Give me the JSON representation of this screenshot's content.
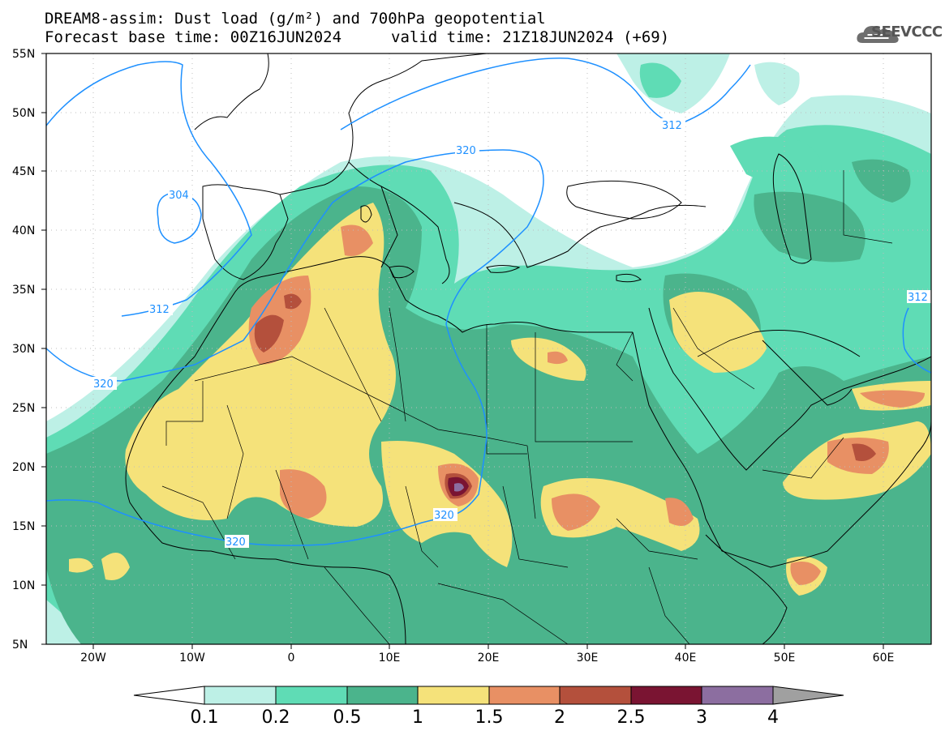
{
  "header": {
    "title": "DREAM8-assim: Dust load (g/m²) and 700hPa geopotential",
    "base_time": "Forecast base time: 00Z16JUN2024",
    "valid_time": "valid time: 21Z18JUN2024 (+69)"
  },
  "logo": {
    "text": "SEEVCCC",
    "icon": "cloud-logo-icon"
  },
  "map": {
    "lat_labels": [
      "5N",
      "10N",
      "15N",
      "20N",
      "25N",
      "30N",
      "35N",
      "40N",
      "45N",
      "50N",
      "55N"
    ],
    "lon_labels": [
      "20W",
      "10W",
      "0",
      "10E",
      "20E",
      "30E",
      "40E",
      "50E",
      "60E"
    ],
    "contour_labels": [
      {
        "id": "304",
        "text": "304"
      },
      {
        "id": "312a",
        "text": "312"
      },
      {
        "id": "312b",
        "text": "312"
      },
      {
        "id": "312c",
        "text": "312"
      },
      {
        "id": "320a",
        "text": "320"
      },
      {
        "id": "320b",
        "text": "320"
      },
      {
        "id": "320c",
        "text": "320"
      },
      {
        "id": "320d",
        "text": "320"
      }
    ]
  },
  "colorbar": {
    "thresholds": [
      "0.1",
      "0.2",
      "0.5",
      "1",
      "1.5",
      "2",
      "2.5",
      "3",
      "4"
    ],
    "colors": [
      "#bdf0e6",
      "#5fdcb5",
      "#4bb48c",
      "#f5e27a",
      "#e89064",
      "#b4503c",
      "#7a1432",
      "#8c6ea0"
    ],
    "under_color": "#ffffff",
    "over_color": "#a0a0a0"
  },
  "colors": {
    "contour": "#1e90ff",
    "border": "#000000"
  }
}
